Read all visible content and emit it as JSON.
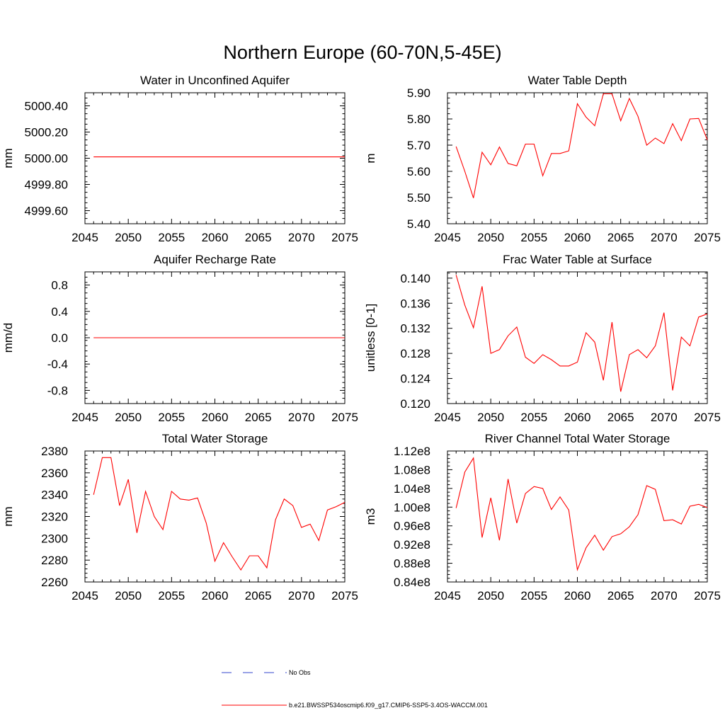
{
  "figure": {
    "title": "Northern Europe (60-70N,5-45E)",
    "legend": [
      {
        "label": "No Obs",
        "color": "#3344cc",
        "style": "dashed"
      },
      {
        "label": "b.e21.BWSSP534oscmip6.f09_g17.CMIP6-SSP5-3.4OS-WACCM.001",
        "color": "#ff0000",
        "style": "solid"
      }
    ]
  },
  "chart_data": [
    {
      "id": "p1",
      "type": "line",
      "title": "Water in Unconfined Aquifer",
      "ylabel": "mm",
      "xlim": [
        2045,
        2075
      ],
      "xticks": [
        2045,
        2050,
        2055,
        2060,
        2065,
        2070,
        2075
      ],
      "ylim": [
        4999.5,
        5000.5
      ],
      "yticks": [
        4999.6,
        4999.8,
        5000.0,
        5000.2,
        5000.4
      ],
      "yticklabels": [
        "4999.60",
        "4999.80",
        "5000.00",
        "5000.20",
        "5000.40"
      ],
      "yminor": 0.04,
      "series": [
        {
          "name": "b.e21.BWSSP534oscmip6.f09_g17.CMIP6-SSP5-3.4OS-WACCM.001",
          "color": "#ff0000",
          "x": [
            2046,
            2075
          ],
          "y": [
            5000.01,
            5000.01
          ]
        }
      ]
    },
    {
      "id": "p2",
      "type": "line",
      "title": "Water Table Depth",
      "ylabel": "m",
      "xlim": [
        2045,
        2075
      ],
      "xticks": [
        2045,
        2050,
        2055,
        2060,
        2065,
        2070,
        2075
      ],
      "ylim": [
        5.4,
        5.9
      ],
      "yticks": [
        5.4,
        5.5,
        5.6,
        5.7,
        5.8,
        5.9
      ],
      "yticklabels": [
        "5.40",
        "5.50",
        "5.60",
        "5.70",
        "5.80",
        "5.90"
      ],
      "yminor": 0.02,
      "series": [
        {
          "name": "b.e21.BWSSP534oscmip6.f09_g17.CMIP6-SSP5-3.4OS-WACCM.001",
          "color": "#ff0000",
          "x": [
            2046,
            2047,
            2048,
            2049,
            2050,
            2051,
            2052,
            2053,
            2054,
            2055,
            2056,
            2057,
            2058,
            2059,
            2060,
            2061,
            2062,
            2063,
            2064,
            2065,
            2066,
            2067,
            2068,
            2069,
            2070,
            2071,
            2072,
            2073,
            2074,
            2075
          ],
          "y": [
            5.695,
            5.6,
            5.498,
            5.673,
            5.625,
            5.693,
            5.63,
            5.621,
            5.704,
            5.704,
            5.583,
            5.668,
            5.668,
            5.678,
            5.858,
            5.807,
            5.774,
            5.896,
            5.896,
            5.793,
            5.878,
            5.81,
            5.7,
            5.727,
            5.706,
            5.782,
            5.717,
            5.8,
            5.802,
            5.72
          ]
        }
      ]
    },
    {
      "id": "p3",
      "type": "line",
      "title": "Aquifer Recharge Rate",
      "ylabel": "mm/d",
      "xlim": [
        2045,
        2075
      ],
      "xticks": [
        2045,
        2050,
        2055,
        2060,
        2065,
        2070,
        2075
      ],
      "ylim": [
        -1.0,
        1.0
      ],
      "yticks": [
        -0.8,
        -0.4,
        0.0,
        0.4,
        0.8
      ],
      "yticklabels": [
        "-0.8",
        "-0.4",
        "0.0",
        "0.4",
        "0.8"
      ],
      "yminor": 0.08,
      "series": [
        {
          "name": "b.e21.BWSSP534oscmip6.f09_g17.CMIP6-SSP5-3.4OS-WACCM.001",
          "color": "#ff0000",
          "x": [
            2046,
            2075
          ],
          "y": [
            0.0,
            0.0
          ]
        }
      ]
    },
    {
      "id": "p4",
      "type": "line",
      "title": "Frac Water Table at Surface",
      "ylabel": "unitless [0-1]",
      "xlim": [
        2045,
        2075
      ],
      "xticks": [
        2045,
        2050,
        2055,
        2060,
        2065,
        2070,
        2075
      ],
      "ylim": [
        0.12,
        0.141
      ],
      "yticks": [
        0.12,
        0.124,
        0.128,
        0.132,
        0.136,
        0.14
      ],
      "yticklabels": [
        "0.120",
        "0.124",
        "0.128",
        "0.132",
        "0.136",
        "0.140"
      ],
      "yminor": 0.0008,
      "series": [
        {
          "name": "b.e21.BWSSP534oscmip6.f09_g17.CMIP6-SSP5-3.4OS-WACCM.001",
          "color": "#ff0000",
          "x": [
            2046,
            2047,
            2048,
            2049,
            2050,
            2051,
            2052,
            2053,
            2054,
            2055,
            2056,
            2057,
            2058,
            2059,
            2060,
            2061,
            2062,
            2063,
            2064,
            2065,
            2066,
            2067,
            2068,
            2069,
            2070,
            2071,
            2072,
            2073,
            2074,
            2075
          ],
          "y": [
            0.1405,
            0.1357,
            0.1321,
            0.1387,
            0.128,
            0.1286,
            0.1308,
            0.1322,
            0.1274,
            0.1264,
            0.1278,
            0.127,
            0.126,
            0.126,
            0.1266,
            0.1313,
            0.1298,
            0.1237,
            0.133,
            0.1219,
            0.1278,
            0.1286,
            0.1273,
            0.1292,
            0.1345,
            0.1221,
            0.1306,
            0.1292,
            0.1338,
            0.1343
          ]
        }
      ]
    },
    {
      "id": "p5",
      "type": "line",
      "title": "Total Water Storage",
      "ylabel": "mm",
      "xlim": [
        2045,
        2075
      ],
      "xticks": [
        2045,
        2050,
        2055,
        2060,
        2065,
        2070,
        2075
      ],
      "ylim": [
        2260,
        2380
      ],
      "yticks": [
        2260,
        2280,
        2300,
        2320,
        2340,
        2360,
        2380
      ],
      "yticklabels": [
        "2260",
        "2280",
        "2300",
        "2320",
        "2340",
        "2360",
        "2380"
      ],
      "yminor": 4,
      "series": [
        {
          "name": "b.e21.BWSSP534oscmip6.f09_g17.CMIP6-SSP5-3.4OS-WACCM.001",
          "color": "#ff0000",
          "x": [
            2046,
            2047,
            2048,
            2049,
            2050,
            2051,
            2052,
            2053,
            2054,
            2055,
            2056,
            2057,
            2058,
            2059,
            2060,
            2061,
            2062,
            2063,
            2064,
            2065,
            2066,
            2067,
            2068,
            2069,
            2070,
            2071,
            2072,
            2073,
            2074,
            2075
          ],
          "y": [
            2340,
            2374,
            2374,
            2330,
            2354,
            2305,
            2343,
            2320,
            2308,
            2343,
            2336,
            2335,
            2337,
            2314,
            2279,
            2296,
            2283,
            2271,
            2284,
            2284,
            2273,
            2317,
            2336,
            2330,
            2310,
            2313,
            2298,
            2326,
            2329,
            2333
          ]
        }
      ]
    },
    {
      "id": "p6",
      "type": "line",
      "title": "River Channel Total Water Storage",
      "ylabel": "m3",
      "xlim": [
        2045,
        2075
      ],
      "xticks": [
        2045,
        2050,
        2055,
        2060,
        2065,
        2070,
        2075
      ],
      "ylim": [
        0.84,
        1.12
      ],
      "yticks": [
        0.84,
        0.88,
        0.92,
        0.96,
        1.0,
        1.04,
        1.08,
        1.12
      ],
      "yticklabels": [
        "0.84e8",
        "0.88e8",
        "0.92e8",
        "0.96e8",
        "1.00e8",
        "1.04e8",
        "1.08e8",
        "1.12e8"
      ],
      "yunit_note": "values in units of 1e8 m3",
      "yminor": 0.008,
      "series": [
        {
          "name": "b.e21.BWSSP534oscmip6.f09_g17.CMIP6-SSP5-3.4OS-WACCM.001",
          "color": "#ff0000",
          "x": [
            2046,
            2047,
            2048,
            2049,
            2050,
            2051,
            2052,
            2053,
            2054,
            2055,
            2056,
            2057,
            2058,
            2059,
            2060,
            2061,
            2062,
            2063,
            2064,
            2065,
            2066,
            2067,
            2068,
            2069,
            2070,
            2071,
            2072,
            2073,
            2074,
            2075
          ],
          "y": [
            0.998,
            1.075,
            1.105,
            0.935,
            1.02,
            0.929,
            1.06,
            0.966,
            1.029,
            1.044,
            1.04,
            0.995,
            1.022,
            0.994,
            0.866,
            0.913,
            0.94,
            0.908,
            0.937,
            0.943,
            0.958,
            0.984,
            1.046,
            1.038,
            0.971,
            0.973,
            0.964,
            1.002,
            1.006,
            0.999
          ]
        }
      ]
    }
  ]
}
